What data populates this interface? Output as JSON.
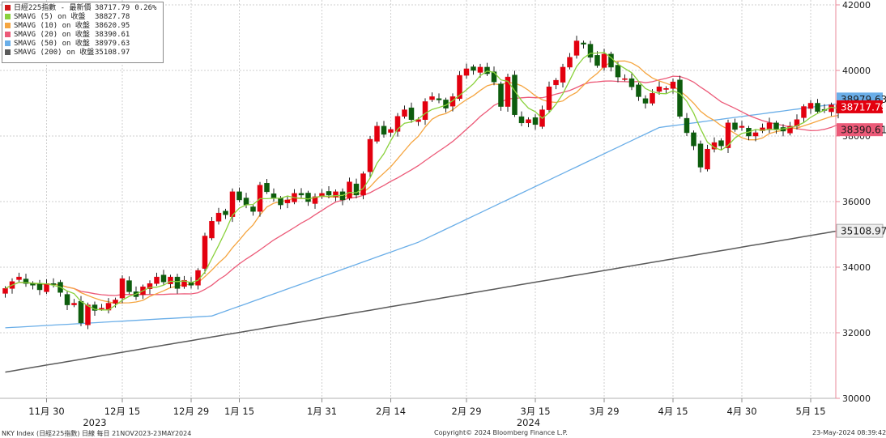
{
  "legend": {
    "rows": [
      {
        "label": "日經225指數 - 最新價",
        "value": "38717.79",
        "change": "0.26%",
        "color": "#d11a1a"
      },
      {
        "label": "SMAVG (5)  on 收盤",
        "value": "38827.78",
        "color": "#8ad13c"
      },
      {
        "label": "SMAVG (10)  on 收盤",
        "value": "38620.95",
        "color": "#f5a540"
      },
      {
        "label": "SMAVG (20)  on 收盤",
        "value": "38390.61",
        "color": "#ec5a78"
      },
      {
        "label": "SMAVG (50)  on 收盤",
        "value": "38979.63",
        "color": "#6aaee8"
      },
      {
        "label": "SMAVG (200)  on 收盤",
        "value": "35108.97",
        "color": "#5a5a5a"
      }
    ]
  },
  "price_tags": [
    {
      "text": "38979.63",
      "value": 38979.63,
      "bg": "#6aaee8",
      "fg": "#1a1a1a"
    },
    {
      "text": "38717.79",
      "value": 38717.79,
      "bg": "#e3000f",
      "fg": "#ffffff"
    },
    {
      "text": "38390.61",
      "value": 38390.61,
      "bg": "#ec5a78",
      "fg": "#1a1a1a"
    },
    {
      "text": "35108.97",
      "value": 35108.97,
      "bg": "#eeeeee",
      "fg": "#1a1a1a"
    }
  ],
  "footer": {
    "left": "NKY Index (日經225指數) 日線  每日 21NOV2023-23MAY2024",
    "center": "Copyright© 2024 Bloomberg Finance L.P.",
    "right": "23-May-2024 08:39:42"
  },
  "chart_data": {
    "type": "candlestick",
    "ylim": [
      30000,
      42000
    ],
    "yticks": [
      30000,
      32000,
      34000,
      36000,
      38000,
      40000,
      42000
    ],
    "y_axis_side": "right",
    "grid": true,
    "x_tick_labels": [
      {
        "label": "11月 30",
        "idx": 6
      },
      {
        "label": "12月 15",
        "idx": 17
      },
      {
        "label": "12月 29",
        "idx": 27
      },
      {
        "label": "1月 15",
        "idx": 34
      },
      {
        "label": "1月 31",
        "idx": 46
      },
      {
        "label": "2月 14",
        "idx": 56
      },
      {
        "label": "2月 29",
        "idx": 67
      },
      {
        "label": "3月 15",
        "idx": 77
      },
      {
        "label": "3月 29",
        "idx": 87
      },
      {
        "label": "4月 15",
        "idx": 97
      },
      {
        "label": "4月 30",
        "idx": 107
      },
      {
        "label": "5月 15",
        "idx": 117
      }
    ],
    "year_labels": [
      {
        "label": "2023",
        "idx": 13
      },
      {
        "label": "2024",
        "idx": 76
      }
    ],
    "closes": [
      33350,
      33560,
      33700,
      33500,
      33450,
      33310,
      33500,
      33480,
      33230,
      32850,
      32900,
      32300,
      32850,
      32680,
      32750,
      32900,
      33000,
      33650,
      33250,
      33100,
      33400,
      33500,
      33700,
      33550,
      33700,
      33350,
      33600,
      33450,
      33900,
      34950,
      35400,
      35650,
      35600,
      36300,
      36050,
      35900,
      35700,
      36500,
      36300,
      36100,
      35900,
      36050,
      36250,
      36200,
      36000,
      36150,
      36250,
      36200,
      36300,
      36050,
      36600,
      36200,
      36850,
      37900,
      38300,
      38050,
      38200,
      38600,
      38800,
      38500,
      38500,
      39050,
      39200,
      39100,
      38850,
      39200,
      39850,
      40050,
      40000,
      40100,
      39900,
      39650,
      38900,
      39800,
      38650,
      38400,
      38500,
      38350,
      38800,
      39500,
      39700,
      40100,
      40400,
      40900,
      40800,
      40400,
      40150,
      40500,
      40100,
      39800,
      39750,
      39500,
      39200,
      39000,
      39300,
      39500,
      39450,
      39650,
      38600,
      38100,
      37700,
      37050,
      37600,
      37800,
      37700,
      38400,
      38200,
      38300,
      38000,
      38100,
      38250,
      38400,
      38200,
      38150,
      38300,
      38500,
      38900,
      39000,
      38750,
      38800,
      38950,
      38700
    ]
  }
}
